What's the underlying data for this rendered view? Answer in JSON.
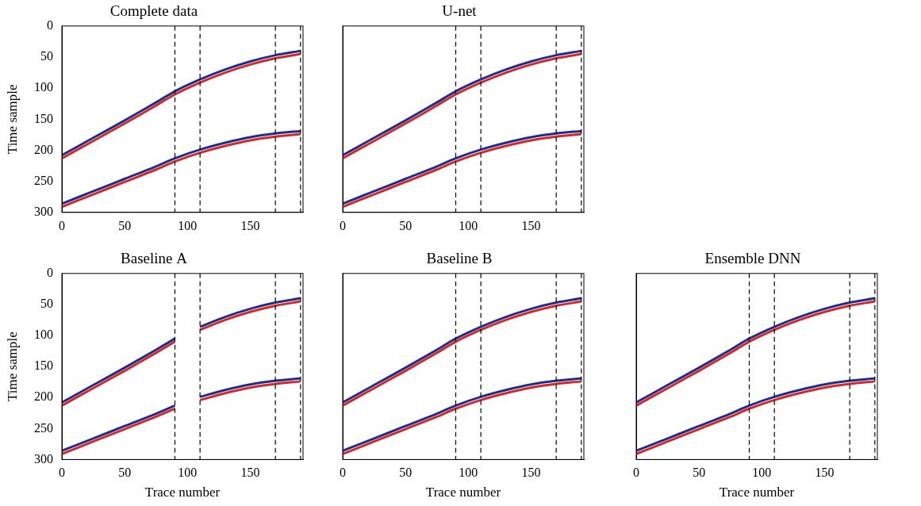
{
  "chart_data": [
    {
      "type": "line",
      "title": "Complete data",
      "ylabel": "Time sample",
      "xlim": [
        0,
        192
      ],
      "xticks": [
        0,
        50,
        100,
        150
      ],
      "ylim": [
        0,
        300
      ],
      "yticks": [
        0,
        50,
        100,
        150,
        200,
        250,
        300
      ],
      "grid": false,
      "dashed_lines": [
        90,
        110,
        170,
        190
      ],
      "x": [
        0,
        25,
        50,
        75,
        90,
        110,
        130,
        150,
        170,
        190
      ],
      "series": [
        {
          "color": "#1f2d8f",
          "line_style": "solid",
          "values": [
            208,
            180,
            152,
            123,
            105,
            86,
            70,
            57,
            47,
            40
          ]
        },
        {
          "color": "#d62728",
          "line_style": "solid",
          "values": [
            213,
            185,
            157,
            128,
            110,
            91,
            75,
            62,
            52,
            45
          ]
        },
        {
          "color": "#1f2d8f",
          "line_style": "solid",
          "values": [
            286,
            266,
            246,
            226,
            213,
            199,
            188,
            179,
            173,
            169
          ]
        },
        {
          "color": "#d62728",
          "line_style": "solid",
          "values": [
            291,
            271,
            251,
            231,
            218,
            204,
            193,
            184,
            178,
            174
          ]
        }
      ]
    },
    {
      "type": "line",
      "title": "U-net",
      "tick_labels": "x",
      "xlim": [
        0,
        192
      ],
      "xticks": [
        0,
        50,
        100,
        150
      ],
      "ylim": [
        0,
        300
      ],
      "yticks": [
        0,
        50,
        100,
        150,
        200,
        250,
        300
      ],
      "grid": false,
      "dashed_lines": [
        90,
        110,
        170,
        190
      ],
      "x": [
        0,
        25,
        50,
        75,
        90,
        110,
        130,
        150,
        170,
        190
      ],
      "series": [
        {
          "color": "#1f2d8f",
          "line_style": "solid",
          "values": [
            208,
            180,
            152,
            123,
            105,
            86,
            70,
            57,
            47,
            40
          ]
        },
        {
          "color": "#d62728",
          "line_style": "solid",
          "values": [
            213,
            185,
            157,
            128,
            110,
            91,
            75,
            62,
            52,
            45
          ]
        },
        {
          "color": "#1f2d8f",
          "line_style": "solid",
          "values": [
            286,
            266,
            246,
            226,
            213,
            199,
            188,
            179,
            173,
            169
          ]
        },
        {
          "color": "#d62728",
          "line_style": "solid",
          "values": [
            291,
            271,
            251,
            231,
            218,
            204,
            193,
            184,
            178,
            174
          ]
        }
      ]
    },
    {
      "type": "line",
      "title": "Baseline A",
      "ylabel": "Time sample",
      "xlabel": "Trace number",
      "xlim": [
        0,
        192
      ],
      "xticks": [
        0,
        50,
        100,
        150
      ],
      "ylim": [
        0,
        300
      ],
      "yticks": [
        0,
        50,
        100,
        150,
        200,
        250,
        300
      ],
      "grid": false,
      "dashed_lines": [
        90,
        110,
        170,
        190
      ],
      "x": [
        0,
        25,
        50,
        75,
        90,
        100,
        110,
        130,
        150,
        170,
        190
      ],
      "series": [
        {
          "color": "#1f2d8f",
          "line_style": "solid",
          "values": [
            208,
            180,
            152,
            123,
            105,
            null,
            86,
            70,
            57,
            47,
            40
          ]
        },
        {
          "color": "#d62728",
          "line_style": "solid",
          "values": [
            213,
            185,
            157,
            128,
            110,
            null,
            91,
            75,
            62,
            52,
            45
          ]
        },
        {
          "color": "#1f2d8f",
          "line_style": "solid",
          "values": [
            286,
            266,
            246,
            226,
            213,
            null,
            199,
            188,
            179,
            173,
            169
          ]
        },
        {
          "color": "#d62728",
          "line_style": "solid",
          "values": [
            291,
            271,
            251,
            231,
            218,
            null,
            204,
            193,
            184,
            178,
            174
          ]
        }
      ]
    },
    {
      "type": "line",
      "title": "Baseline B",
      "xlabel": "Trace number",
      "tick_labels": "x",
      "xlim": [
        0,
        192
      ],
      "xticks": [
        0,
        50,
        100,
        150
      ],
      "ylim": [
        0,
        300
      ],
      "yticks": [
        0,
        50,
        100,
        150,
        200,
        250,
        300
      ],
      "grid": false,
      "dashed_lines": [
        90,
        110,
        170,
        190
      ],
      "x": [
        0,
        25,
        50,
        75,
        90,
        110,
        130,
        150,
        170,
        190
      ],
      "series": [
        {
          "color": "#1f2d8f",
          "line_style": "solid",
          "values": [
            208,
            180,
            152,
            123,
            105,
            86,
            70,
            57,
            47,
            40
          ]
        },
        {
          "color": "#d62728",
          "line_style": "solid",
          "values": [
            213,
            185,
            157,
            128,
            110,
            91,
            75,
            62,
            52,
            45
          ]
        },
        {
          "color": "#1f2d8f",
          "line_style": "solid",
          "values": [
            286,
            266,
            246,
            226,
            213,
            199,
            188,
            179,
            173,
            169
          ]
        },
        {
          "color": "#d62728",
          "line_style": "solid",
          "values": [
            291,
            271,
            251,
            231,
            218,
            204,
            193,
            184,
            178,
            174
          ]
        }
      ]
    },
    {
      "type": "line",
      "title": "Ensemble DNN",
      "xlabel": "Trace number",
      "tick_labels": "x",
      "xlim": [
        0,
        192
      ],
      "xticks": [
        0,
        50,
        100,
        150
      ],
      "ylim": [
        0,
        300
      ],
      "yticks": [
        0,
        50,
        100,
        150,
        200,
        250,
        300
      ],
      "grid": false,
      "dashed_lines": [
        90,
        110,
        170,
        190
      ],
      "x": [
        0,
        25,
        50,
        75,
        90,
        110,
        130,
        150,
        170,
        190
      ],
      "series": [
        {
          "color": "#1f2d8f",
          "line_style": "solid",
          "values": [
            208,
            180,
            152,
            123,
            105,
            86,
            70,
            57,
            47,
            40
          ]
        },
        {
          "color": "#d62728",
          "line_style": "solid",
          "values": [
            213,
            185,
            157,
            128,
            110,
            91,
            75,
            62,
            52,
            45
          ]
        },
        {
          "color": "#1f2d8f",
          "line_style": "solid",
          "values": [
            286,
            266,
            246,
            226,
            213,
            199,
            188,
            179,
            173,
            169
          ]
        },
        {
          "color": "#d62728",
          "line_style": "solid",
          "values": [
            291,
            271,
            251,
            231,
            218,
            204,
            193,
            184,
            178,
            174
          ]
        }
      ]
    }
  ]
}
